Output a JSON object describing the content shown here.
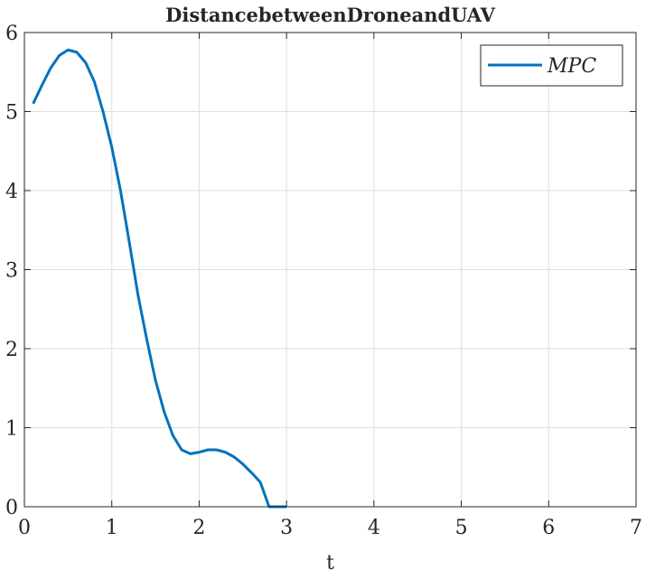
{
  "chart_data": {
    "type": "line",
    "title": "DistancebetweenDroneandUAV",
    "xlabel": "t",
    "ylabel": "",
    "xlim": [
      0,
      7
    ],
    "ylim": [
      0,
      6
    ],
    "x_ticks": [
      "0",
      "1",
      "2",
      "3",
      "4",
      "5",
      "6",
      "7"
    ],
    "y_ticks": [
      "0",
      "1",
      "2",
      "3",
      "4",
      "5",
      "6"
    ],
    "grid": true,
    "legend_position": "top-right",
    "series": [
      {
        "name": "MPC",
        "color": "#0072bd",
        "x": [
          0.1,
          0.2,
          0.3,
          0.4,
          0.5,
          0.6,
          0.7,
          0.8,
          0.9,
          1.0,
          1.1,
          1.2,
          1.3,
          1.4,
          1.5,
          1.6,
          1.7,
          1.8,
          1.9,
          2.0,
          2.1,
          2.2,
          2.3,
          2.4,
          2.5,
          2.6,
          2.7,
          2.8,
          2.9,
          3.0
        ],
        "y": [
          5.1,
          5.33,
          5.55,
          5.71,
          5.78,
          5.75,
          5.62,
          5.38,
          5.0,
          4.55,
          4.0,
          3.35,
          2.68,
          2.12,
          1.6,
          1.2,
          0.9,
          0.72,
          0.67,
          0.69,
          0.72,
          0.72,
          0.69,
          0.63,
          0.54,
          0.43,
          0.31,
          0.0,
          0.0,
          0.0
        ]
      }
    ]
  }
}
